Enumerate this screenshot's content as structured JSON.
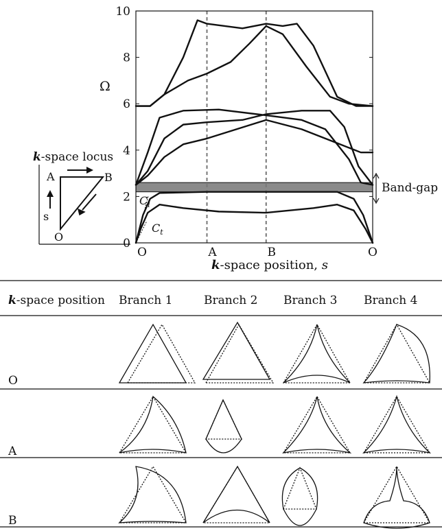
{
  "chart_data": {
    "type": "line",
    "ylabel": "Ω",
    "xlabel": "-space position, ",
    "xlabel_k": "k",
    "xlabel_s": "s",
    "ylim": [
      0,
      10
    ],
    "yticks": [
      "0",
      "2",
      "4",
      "6",
      "8",
      "10"
    ],
    "xlim": [
      0,
      1
    ],
    "xticks": [
      {
        "label": "O",
        "x": 0
      },
      {
        "label": "A",
        "x": 0.3
      },
      {
        "label": "B",
        "x": 0.55
      },
      {
        "label": "O",
        "x": 1
      }
    ],
    "vlines": [
      0.3,
      0.55
    ],
    "band_gap": {
      "label": "Band-gap",
      "range": [
        2.2,
        2.6
      ]
    },
    "series": [
      {
        "points": [
          [
            0,
            0
          ],
          [
            0.02,
            0.6
          ],
          [
            0.05,
            1.3
          ],
          [
            0.1,
            1.65
          ],
          [
            0.2,
            1.5
          ],
          [
            0.35,
            1.35
          ],
          [
            0.55,
            1.3
          ],
          [
            0.75,
            1.5
          ],
          [
            0.85,
            1.65
          ],
          [
            0.92,
            1.4
          ],
          [
            0.97,
            0.6
          ],
          [
            1,
            0
          ]
        ]
      },
      {
        "points": [
          [
            0,
            0
          ],
          [
            0.03,
            1.2
          ],
          [
            0.06,
            1.9
          ],
          [
            0.1,
            2.15
          ],
          [
            0.3,
            2.2
          ],
          [
            0.55,
            2.2
          ],
          [
            0.85,
            2.2
          ],
          [
            0.92,
            1.9
          ],
          [
            0.96,
            1.2
          ],
          [
            1,
            0
          ]
        ]
      },
      {
        "points": [
          [
            0,
            2.5
          ],
          [
            0.05,
            2.9
          ],
          [
            0.12,
            3.7
          ],
          [
            0.2,
            4.25
          ],
          [
            0.3,
            4.5
          ],
          [
            0.55,
            5.3
          ],
          [
            0.7,
            4.9
          ],
          [
            0.85,
            4.3
          ],
          [
            0.95,
            3.9
          ],
          [
            1,
            3.9
          ]
        ]
      },
      {
        "points": [
          [
            0,
            2.5
          ],
          [
            0.05,
            3.1
          ],
          [
            0.12,
            4.5
          ],
          [
            0.2,
            5.1
          ],
          [
            0.3,
            5.2
          ],
          [
            0.45,
            5.3
          ],
          [
            0.55,
            5.55
          ],
          [
            0.7,
            5.7
          ],
          [
            0.82,
            5.7
          ],
          [
            0.88,
            5.0
          ],
          [
            0.94,
            3.3
          ],
          [
            1,
            2.5
          ]
        ]
      },
      {
        "points": [
          [
            0,
            2.5
          ],
          [
            0.05,
            3.9
          ],
          [
            0.1,
            5.4
          ],
          [
            0.2,
            5.7
          ],
          [
            0.35,
            5.75
          ],
          [
            0.55,
            5.5
          ],
          [
            0.7,
            5.3
          ],
          [
            0.8,
            4.9
          ],
          [
            0.9,
            3.6
          ],
          [
            0.95,
            2.6
          ],
          [
            1,
            2.5
          ]
        ]
      },
      {
        "points": [
          [
            0,
            5.9
          ],
          [
            0.06,
            5.9
          ],
          [
            0.12,
            6.4
          ],
          [
            0.2,
            8.0
          ],
          [
            0.26,
            9.6
          ],
          [
            0.3,
            9.45
          ],
          [
            0.45,
            9.25
          ],
          [
            0.55,
            9.45
          ],
          [
            0.62,
            9.35
          ],
          [
            0.68,
            9.45
          ],
          [
            0.75,
            8.5
          ],
          [
            0.85,
            6.3
          ],
          [
            0.93,
            5.9
          ],
          [
            1,
            5.9
          ]
        ]
      },
      {
        "points": [
          [
            0,
            5.9
          ],
          [
            0.06,
            5.9
          ],
          [
            0.12,
            6.4
          ],
          [
            0.22,
            7.0
          ],
          [
            0.3,
            7.3
          ],
          [
            0.4,
            7.8
          ],
          [
            0.48,
            8.6
          ],
          [
            0.55,
            9.35
          ],
          [
            0.62,
            9.0
          ],
          [
            0.72,
            7.6
          ],
          [
            0.82,
            6.3
          ],
          [
            0.9,
            6.0
          ],
          [
            1,
            5.9
          ]
        ]
      }
    ],
    "annotations": {
      "c_l": "C",
      "c_l_sub": "l",
      "c_t": "C",
      "c_t_sub": "t"
    }
  },
  "locus": {
    "title_k": "k",
    "title_rest": "-space locus",
    "label_a": "A",
    "label_b": "B",
    "label_o": "O",
    "label_s": "s"
  },
  "table": {
    "header": {
      "k": "k",
      "position": "-space position"
    },
    "columns": [
      "Branch 1",
      "Branch 2",
      "Branch 3",
      "Branch 4"
    ],
    "rows": [
      "O",
      "A",
      "B"
    ]
  }
}
